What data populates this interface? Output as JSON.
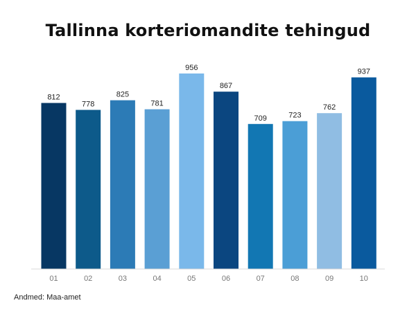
{
  "chart_data": {
    "type": "bar",
    "title": "Tallinna korteriomandite tehingud",
    "categories": [
      "01",
      "02",
      "03",
      "04",
      "05",
      "06",
      "07",
      "08",
      "09",
      "10"
    ],
    "values": [
      812,
      778,
      825,
      781,
      956,
      867,
      709,
      723,
      762,
      937
    ],
    "colors": [
      "#073763",
      "#0d5a8a",
      "#2c7bb6",
      "#5a9fd4",
      "#7ab8ea",
      "#0b4680",
      "#1277b3",
      "#4b9ed6",
      "#90bde3",
      "#0a5a9e"
    ],
    "ylim": [
      0,
      1000
    ],
    "grid": false,
    "legend": "none",
    "xlabel": "",
    "ylabel": ""
  },
  "source_note": "Andmed: Maa-amet"
}
